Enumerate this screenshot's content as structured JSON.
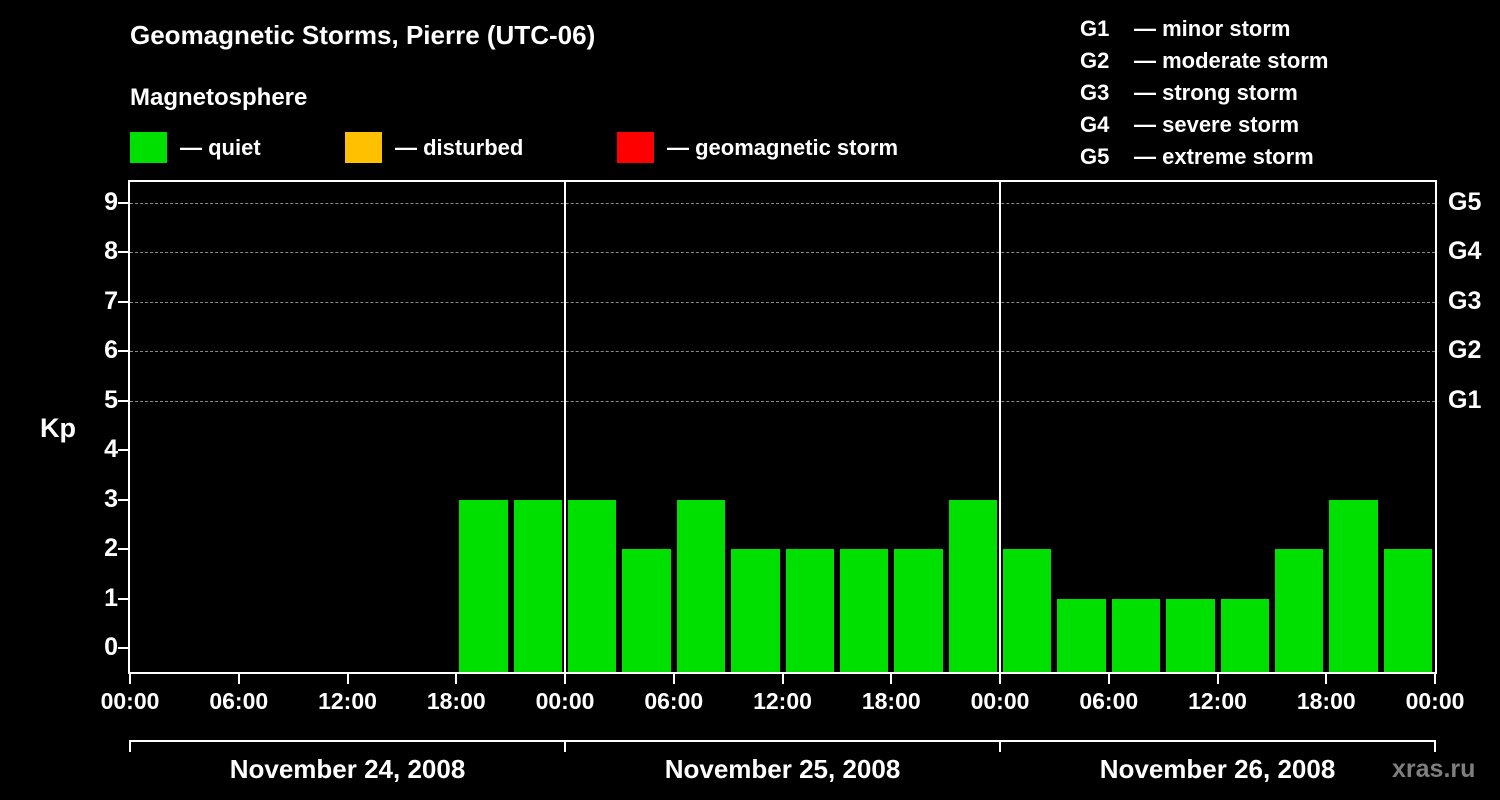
{
  "header": {
    "title": "Geomagnetic Storms, Pierre (UTC-06)",
    "subtitle": "Magnetosphere"
  },
  "legend": {
    "items": [
      {
        "label": "— quiet",
        "color": "#00e000"
      },
      {
        "label": "— disturbed",
        "color": "#ffc000"
      },
      {
        "label": "— geomagnetic storm",
        "color": "#ff0000"
      }
    ]
  },
  "storm_scale": {
    "items": [
      {
        "code": "G1",
        "label": "— minor storm"
      },
      {
        "code": "G2",
        "label": "— moderate storm"
      },
      {
        "code": "G3",
        "label": "— strong storm"
      },
      {
        "code": "G4",
        "label": "— severe storm"
      },
      {
        "code": "G5",
        "label": "— extreme storm"
      }
    ]
  },
  "chart_data": {
    "type": "bar",
    "title": "Geomagnetic Storms, Pierre (UTC-06)",
    "ylabel": "Kp",
    "ylim": [
      0,
      9.5
    ],
    "yticks": [
      0,
      1,
      2,
      3,
      4,
      5,
      6,
      7,
      8,
      9
    ],
    "grid_levels": [
      5,
      6,
      7,
      8,
      9
    ],
    "interval_hours": 3,
    "bar_colors": {
      "quiet": "#00e000",
      "disturbed": "#ffc000",
      "storm": "#ff0000"
    },
    "days": [
      {
        "date": "November 24, 2008",
        "values": [
          null,
          null,
          null,
          null,
          null,
          null,
          3,
          3
        ]
      },
      {
        "date": "November 25, 2008",
        "values": [
          3,
          2,
          3,
          2,
          2,
          2,
          2,
          3
        ]
      },
      {
        "date": "November 26, 2008",
        "values": [
          2,
          1,
          1,
          1,
          1,
          2,
          3,
          2
        ]
      }
    ],
    "x_tick_labels": [
      "00:00",
      "06:00",
      "12:00",
      "18:00",
      "00:00",
      "06:00",
      "12:00",
      "18:00",
      "00:00",
      "06:00",
      "12:00",
      "18:00",
      "00:00"
    ],
    "right_axis_labels": [
      {
        "kp": 5,
        "label": "G1"
      },
      {
        "kp": 6,
        "label": "G2"
      },
      {
        "kp": 7,
        "label": "G3"
      },
      {
        "kp": 8,
        "label": "G4"
      },
      {
        "kp": 9,
        "label": "G5"
      }
    ]
  },
  "watermark": "xras.ru"
}
